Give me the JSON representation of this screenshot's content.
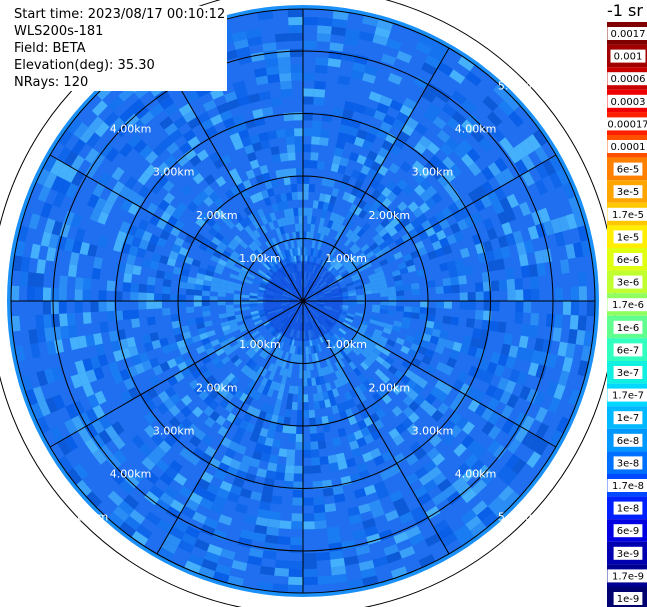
{
  "header": {
    "start_time": "Start time: 2023/08/17 00:10:12",
    "instrument": "WLS200s-181",
    "field": "Field: BETA",
    "elevation": "Elevation(deg): 35.30",
    "nrays": "NRays: 120"
  },
  "colorbar": {
    "unit": "-1 sr",
    "labels": [
      "0.0017",
      "0.001",
      "0.0006",
      "0.0003",
      "0.00017",
      "0.0001",
      "6e-5",
      "3e-5",
      "1.7e-5",
      "1e-5",
      "6e-6",
      "3e-6",
      "1.7e-6",
      "1e-6",
      "6e-7",
      "3e-7",
      "1.7e-7",
      "1e-7",
      "6e-8",
      "3e-8",
      "1.7e-8",
      "1e-8",
      "6e-9",
      "3e-9",
      "1.7e-9",
      "1e-9"
    ],
    "colors": [
      "#800000",
      "#a00000",
      "#c80000",
      "#f00000",
      "#ff2000",
      "#ff5000",
      "#ff7f00",
      "#ffa500",
      "#ffc800",
      "#ffee00",
      "#e0ff10",
      "#c0ff30",
      "#90ff60",
      "#60ff90",
      "#30ffc0",
      "#10f0e0",
      "#00d8ff",
      "#00b8ff",
      "#0098ff",
      "#0070ff",
      "#0048ff",
      "#0020ff",
      "#0000e0",
      "#0000b0",
      "#000090",
      "#000070"
    ]
  },
  "chart_data": {
    "type": "heatmap",
    "projection": "polar (PPI scan)",
    "field": "BETA",
    "nrays": 120,
    "elevation_deg": 35.3,
    "range_rings_km": [
      1.0,
      2.0,
      3.0,
      4.0,
      5.0
    ],
    "range_ring_labels": [
      "1.00km",
      "2.00km",
      "3.00km",
      "4.00km",
      "5.00km"
    ],
    "max_range_km": 5.8,
    "spoke_angles_deg": [
      0,
      30,
      60,
      90,
      120,
      150
    ],
    "value_range": [
      "1e-9",
      "0.0017"
    ],
    "dominant_values": [
      "1e-8",
      "1.7e-8",
      "3e-8"
    ],
    "scale": "log"
  }
}
